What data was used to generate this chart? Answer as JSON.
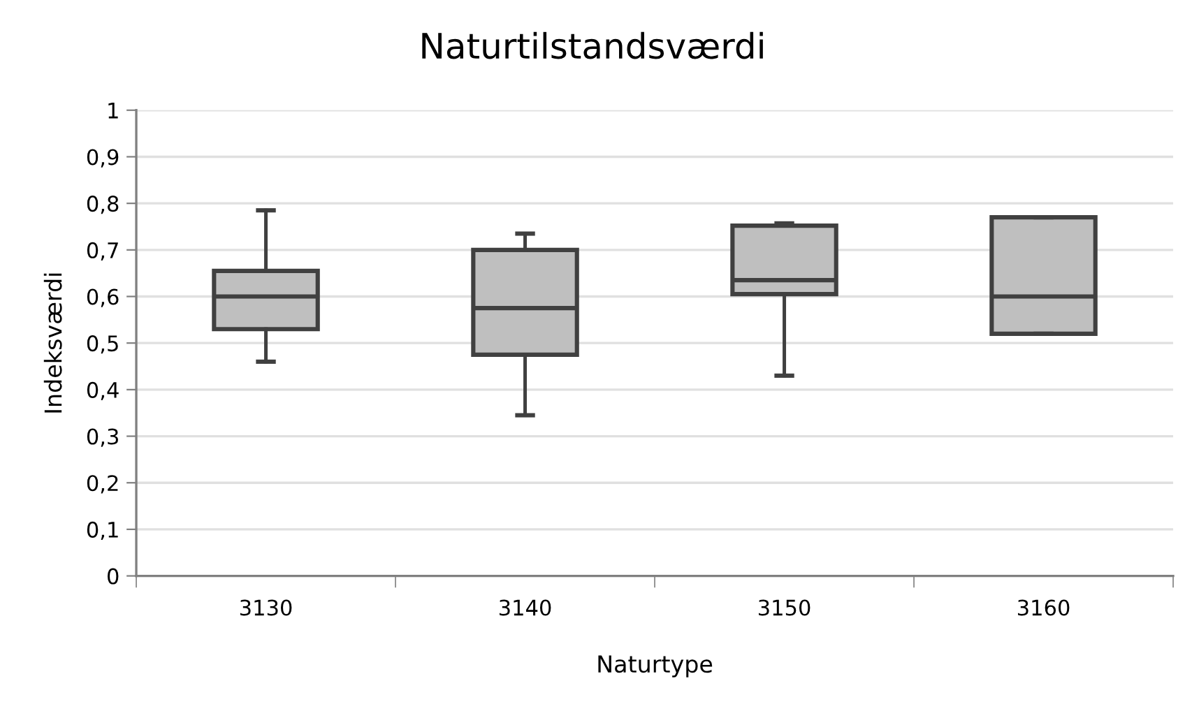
{
  "chart_data": {
    "type": "box",
    "title": "Naturtilstandsværdi",
    "xlabel": "Naturtype",
    "ylabel": "Indeksværdi",
    "categories": [
      "3130",
      "3140",
      "3150",
      "3160"
    ],
    "boxes": [
      {
        "low": 0.46,
        "q1": 0.53,
        "median": 0.6,
        "q3": 0.655,
        "high": 0.785
      },
      {
        "low": 0.345,
        "q1": 0.475,
        "median": 0.575,
        "q3": 0.7,
        "high": 0.735
      },
      {
        "low": 0.43,
        "q1": 0.605,
        "median": 0.635,
        "q3": 0.752,
        "high": 0.757
      },
      {
        "low": 0.52,
        "q1": 0.52,
        "median": 0.6,
        "q3": 0.77,
        "high": 0.77
      }
    ],
    "color": "#bfbfbf",
    "ylim": [
      0,
      1
    ],
    "yticks": [
      0,
      {
        "value": 0.1,
        "label": "0,1"
      },
      {
        "value": 0.2,
        "label": "0,2"
      },
      {
        "value": 0.3,
        "label": "0,3"
      },
      {
        "value": 0.4,
        "label": "0,4"
      },
      {
        "value": 0.5,
        "label": "0,5"
      },
      {
        "value": 0.6,
        "label": "0,6"
      },
      {
        "value": 0.7,
        "label": "0,7"
      },
      {
        "value": 0.8,
        "label": "0,8"
      },
      {
        "value": 0.9,
        "label": "0,9"
      },
      1
    ],
    "grid": "y"
  }
}
